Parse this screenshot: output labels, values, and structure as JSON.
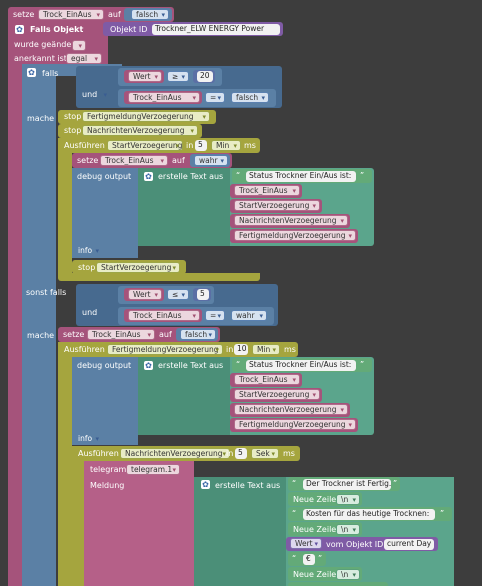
{
  "block1": {
    "set_keyword": "setze",
    "var_trock": "Trock_EinAus",
    "auf": "auf",
    "false_val": "falsch"
  },
  "trigger": {
    "title": "Falls Objekt",
    "object_id_label": "Objekt ID",
    "object_id_value": "Trockner_ELW ENERGY  Power",
    "changed": "wurde geändert",
    "ack_label": "anerkannt ist",
    "ack_value": "egal"
  },
  "if_block": {
    "falls": "falls",
    "und": "und",
    "mache": "mache",
    "sonst_falls": "sonst falls",
    "wert": "Wert",
    "op_ge": "≥",
    "val_20": "20",
    "eq_op": "=",
    "false_val": "falsch",
    "op_le": "≤",
    "val_5": "5",
    "true_val": "wahr"
  },
  "branch1": {
    "stop": "stop",
    "timer_fertig": "FertigmeldungVerzoegerung",
    "timer_nachricht": "NachrichtenVerzoegerung",
    "ausfuehren": "Ausführen",
    "timer_start": "StartVerzoegerung",
    "in": "in",
    "dur_5": "5",
    "unit_min": "Min",
    "ms": "ms",
    "setze": "setze",
    "var_trock": "Trock_EinAus",
    "auf": "auf",
    "true_val": "wahr",
    "debug": "debug output",
    "create_text": "erstelle Text aus",
    "quote_text": "Status Trockner Ein/Aus ist: ",
    "items": [
      "Trock_EinAus",
      "StartVerzoegerung",
      "NachrichtenVerzoegerung",
      "FertigmeldungVerzoegerung"
    ],
    "info": "info",
    "stop2": "stop",
    "stop2_timer": "StartVerzoegerung"
  },
  "branch2": {
    "setze": "setze",
    "var_trock": "Trock_EinAus",
    "auf": "auf",
    "false_val": "falsch",
    "ausfuehren": "Ausführen",
    "timer_fertig": "FertigmeldungVerzoegerung",
    "in": "in",
    "dur_10": "10",
    "unit_min": "Min",
    "ms": "ms",
    "debug": "debug output",
    "create_text": "erstelle Text aus",
    "quote_text": "Status Trockner Ein/Aus ist: ",
    "items": [
      "Trock_EinAus",
      "StartVerzoegerung",
      "NachrichtenVerzoegerung",
      "FertigmeldungVerzoegerung"
    ],
    "info": "info",
    "ausfuehren2": "Ausführen",
    "timer_nachricht": "NachrichtenVerzoegerung",
    "dur_5": "5",
    "unit_sek": "Sek",
    "telegram": "telegram",
    "telegram_inst": "telegram.1",
    "meldung": "Meldung",
    "create_text2": "erstelle Text aus",
    "msg1": "Der Trockner ist Fertig.",
    "newline": "Neue Zeile",
    "nl_val": "\\n",
    "msg2": "Kosten für das heutige Trocknen:",
    "wert": "Wert",
    "vom_objekt": "vom Objekt ID",
    "obj_current": "current Day",
    "euro": "€"
  },
  "icons": {
    "gear": "gear-icon",
    "quote": "quote-icon"
  }
}
